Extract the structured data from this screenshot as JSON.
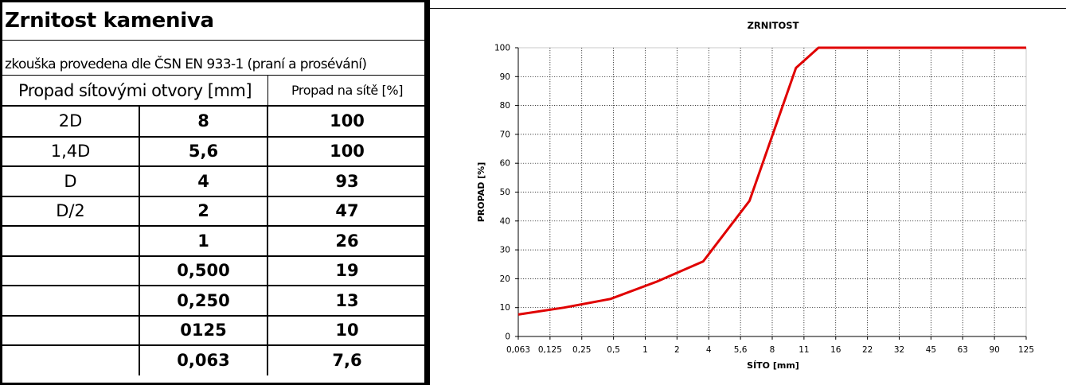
{
  "left": {
    "title": "Zrnitost kameniva",
    "subtitle": "zkouška provedena dle ČSN EN 933-1 (praní a prosévání)",
    "header_sieve": "Propad sítovými otvory [mm]",
    "header_pass": "Propad na sítě [%]",
    "rows": [
      {
        "label": "2D",
        "sieve": "8",
        "pass": "100"
      },
      {
        "label": "1,4D",
        "sieve": "5,6",
        "pass": "100"
      },
      {
        "label": "D",
        "sieve": "4",
        "pass": "93"
      },
      {
        "label": "D/2",
        "sieve": "2",
        "pass": "47"
      },
      {
        "label": "",
        "sieve": "1",
        "pass": "26"
      },
      {
        "label": "",
        "sieve": "0,500",
        "pass": "19"
      },
      {
        "label": "",
        "sieve": "0,250",
        "pass": "13"
      },
      {
        "label": "",
        "sieve": "0125",
        "pass": "10"
      },
      {
        "label": "",
        "sieve": "0,063",
        "pass": "7,6"
      }
    ]
  },
  "chart_data": {
    "type": "line",
    "title": "ZRNITOST",
    "xlabel": "SÍTO [mm]",
    "ylabel": "PROPAD [%]",
    "x_scale": "log",
    "x_ticks": [
      "0,063",
      "0,125",
      "0,25",
      "0,5",
      "1",
      "2",
      "4",
      "5,6",
      "8",
      "11",
      "16",
      "22",
      "32",
      "45",
      "63",
      "90",
      "125"
    ],
    "x_range": [
      0.063,
      125
    ],
    "ylim": [
      0,
      100
    ],
    "y_ticks": [
      0,
      10,
      20,
      30,
      40,
      50,
      60,
      70,
      80,
      90,
      100
    ],
    "grid": true,
    "series": [
      {
        "color": "#e00000",
        "x": [
          0.063,
          0.125,
          0.25,
          0.5,
          1,
          2,
          4,
          5.6,
          8,
          11,
          16,
          22,
          32,
          45,
          63,
          90,
          125
        ],
        "y": [
          7.6,
          10,
          13,
          19,
          26,
          47,
          93,
          100,
          100,
          100,
          100,
          100,
          100,
          100,
          100,
          100,
          100
        ]
      }
    ]
  }
}
